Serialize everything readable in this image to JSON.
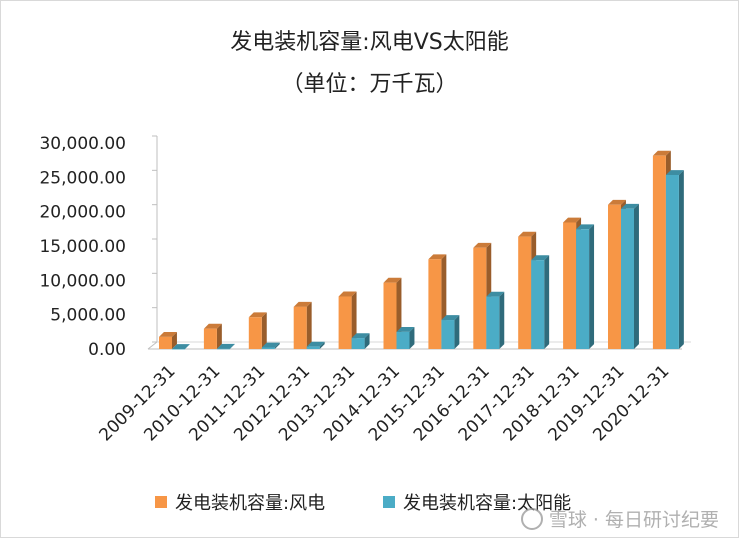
{
  "chart_data": {
    "type": "bar",
    "title": "发电装机容量:风电VS太阳能",
    "subtitle": "（单位：万千瓦）",
    "categories": [
      "2009-12-31",
      "2010-12-31",
      "2011-12-31",
      "2012-12-31",
      "2013-12-31",
      "2014-12-31",
      "2015-12-31",
      "2016-12-31",
      "2017-12-31",
      "2018-12-31",
      "2019-12-31",
      "2020-12-31"
    ],
    "series": [
      {
        "name": "发电装机容量:风电",
        "color": "#f79646",
        "values": [
          1760,
          2958,
          4623,
          6142,
          7652,
          9657,
          13075,
          14747,
          16367,
          18426,
          21005,
          28153
        ]
      },
      {
        "name": "发电装机容量:太阳能",
        "color": "#4bacc6",
        "values": [
          3,
          26,
          222,
          341,
          1589,
          2486,
          4218,
          7631,
          12942,
          17433,
          20418,
          25343
        ]
      }
    ],
    "ylim": [
      0,
      30000
    ],
    "yticks": [
      "0.00",
      "5,000.00",
      "10,000.00",
      "15,000.00",
      "20,000.00",
      "25,000.00",
      "30,000.00"
    ],
    "ytick_values": [
      0,
      5000,
      10000,
      15000,
      20000,
      25000,
      30000
    ],
    "legend_position": "bottom",
    "grid": false
  },
  "watermark": "雪球 · 每日研讨纪要"
}
